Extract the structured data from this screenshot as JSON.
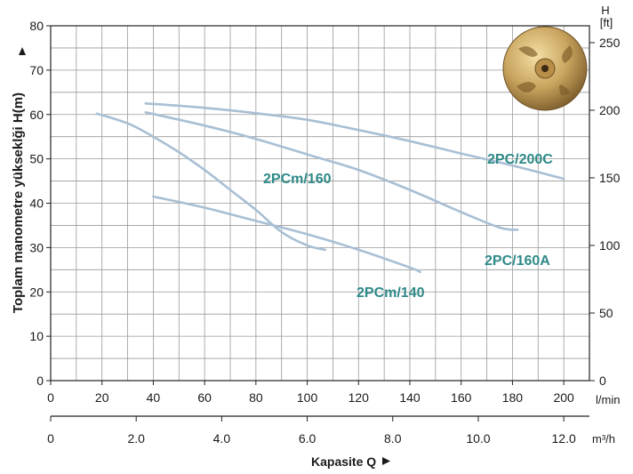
{
  "chart_data": {
    "type": "line",
    "ylabel": "Toplam manometre yükseklği H(m)",
    "ylim": [
      0,
      80
    ],
    "y_ticks": [
      0,
      10,
      20,
      30,
      40,
      50,
      60,
      70,
      80
    ],
    "y_right_title": "H",
    "y_right_unit": "[ft]",
    "y_right_ticks": [
      0,
      50,
      100,
      150,
      200,
      250
    ],
    "x_unit_lmin": "l/min",
    "x_ticks_lmin": [
      0,
      20,
      40,
      60,
      80,
      100,
      120,
      140,
      160,
      180,
      200
    ],
    "xlim_lmin": [
      0,
      210
    ],
    "x_unit_m3h": "m³/h",
    "x_ticks_m3h": [
      "0",
      "2.0",
      "4.0",
      "6.0",
      "8.0",
      "10.0",
      "12.0"
    ],
    "xlabel": "Kapasite Q",
    "grid": true,
    "series": [
      {
        "name": "2PC/200C",
        "x": [
          37,
          60,
          80,
          100,
          120,
          140,
          160,
          180,
          200
        ],
        "y": [
          62.5,
          61.5,
          60.3,
          58.8,
          56.5,
          54.0,
          51.2,
          48.5,
          45.5
        ]
      },
      {
        "name": "2PC/160A",
        "x": [
          37,
          60,
          80,
          100,
          120,
          140,
          160,
          175,
          182
        ],
        "y": [
          60.5,
          57.5,
          54.5,
          51.0,
          47.5,
          43.0,
          38.0,
          34.5,
          34.0
        ]
      },
      {
        "name": "2PCm/160",
        "x": [
          18,
          30,
          40,
          50,
          60,
          70,
          80,
          90,
          100,
          107
        ],
        "y": [
          60.2,
          58.0,
          55.0,
          51.5,
          47.5,
          43.0,
          38.5,
          33.5,
          30.5,
          29.5
        ]
      },
      {
        "name": "2PCm/140",
        "x": [
          40,
          60,
          80,
          100,
          120,
          140,
          144
        ],
        "y": [
          41.5,
          39.0,
          36.0,
          33.0,
          29.5,
          25.5,
          24.5
        ]
      }
    ],
    "series_color": "#a8bfd4",
    "label_color": "#2e8a88"
  }
}
